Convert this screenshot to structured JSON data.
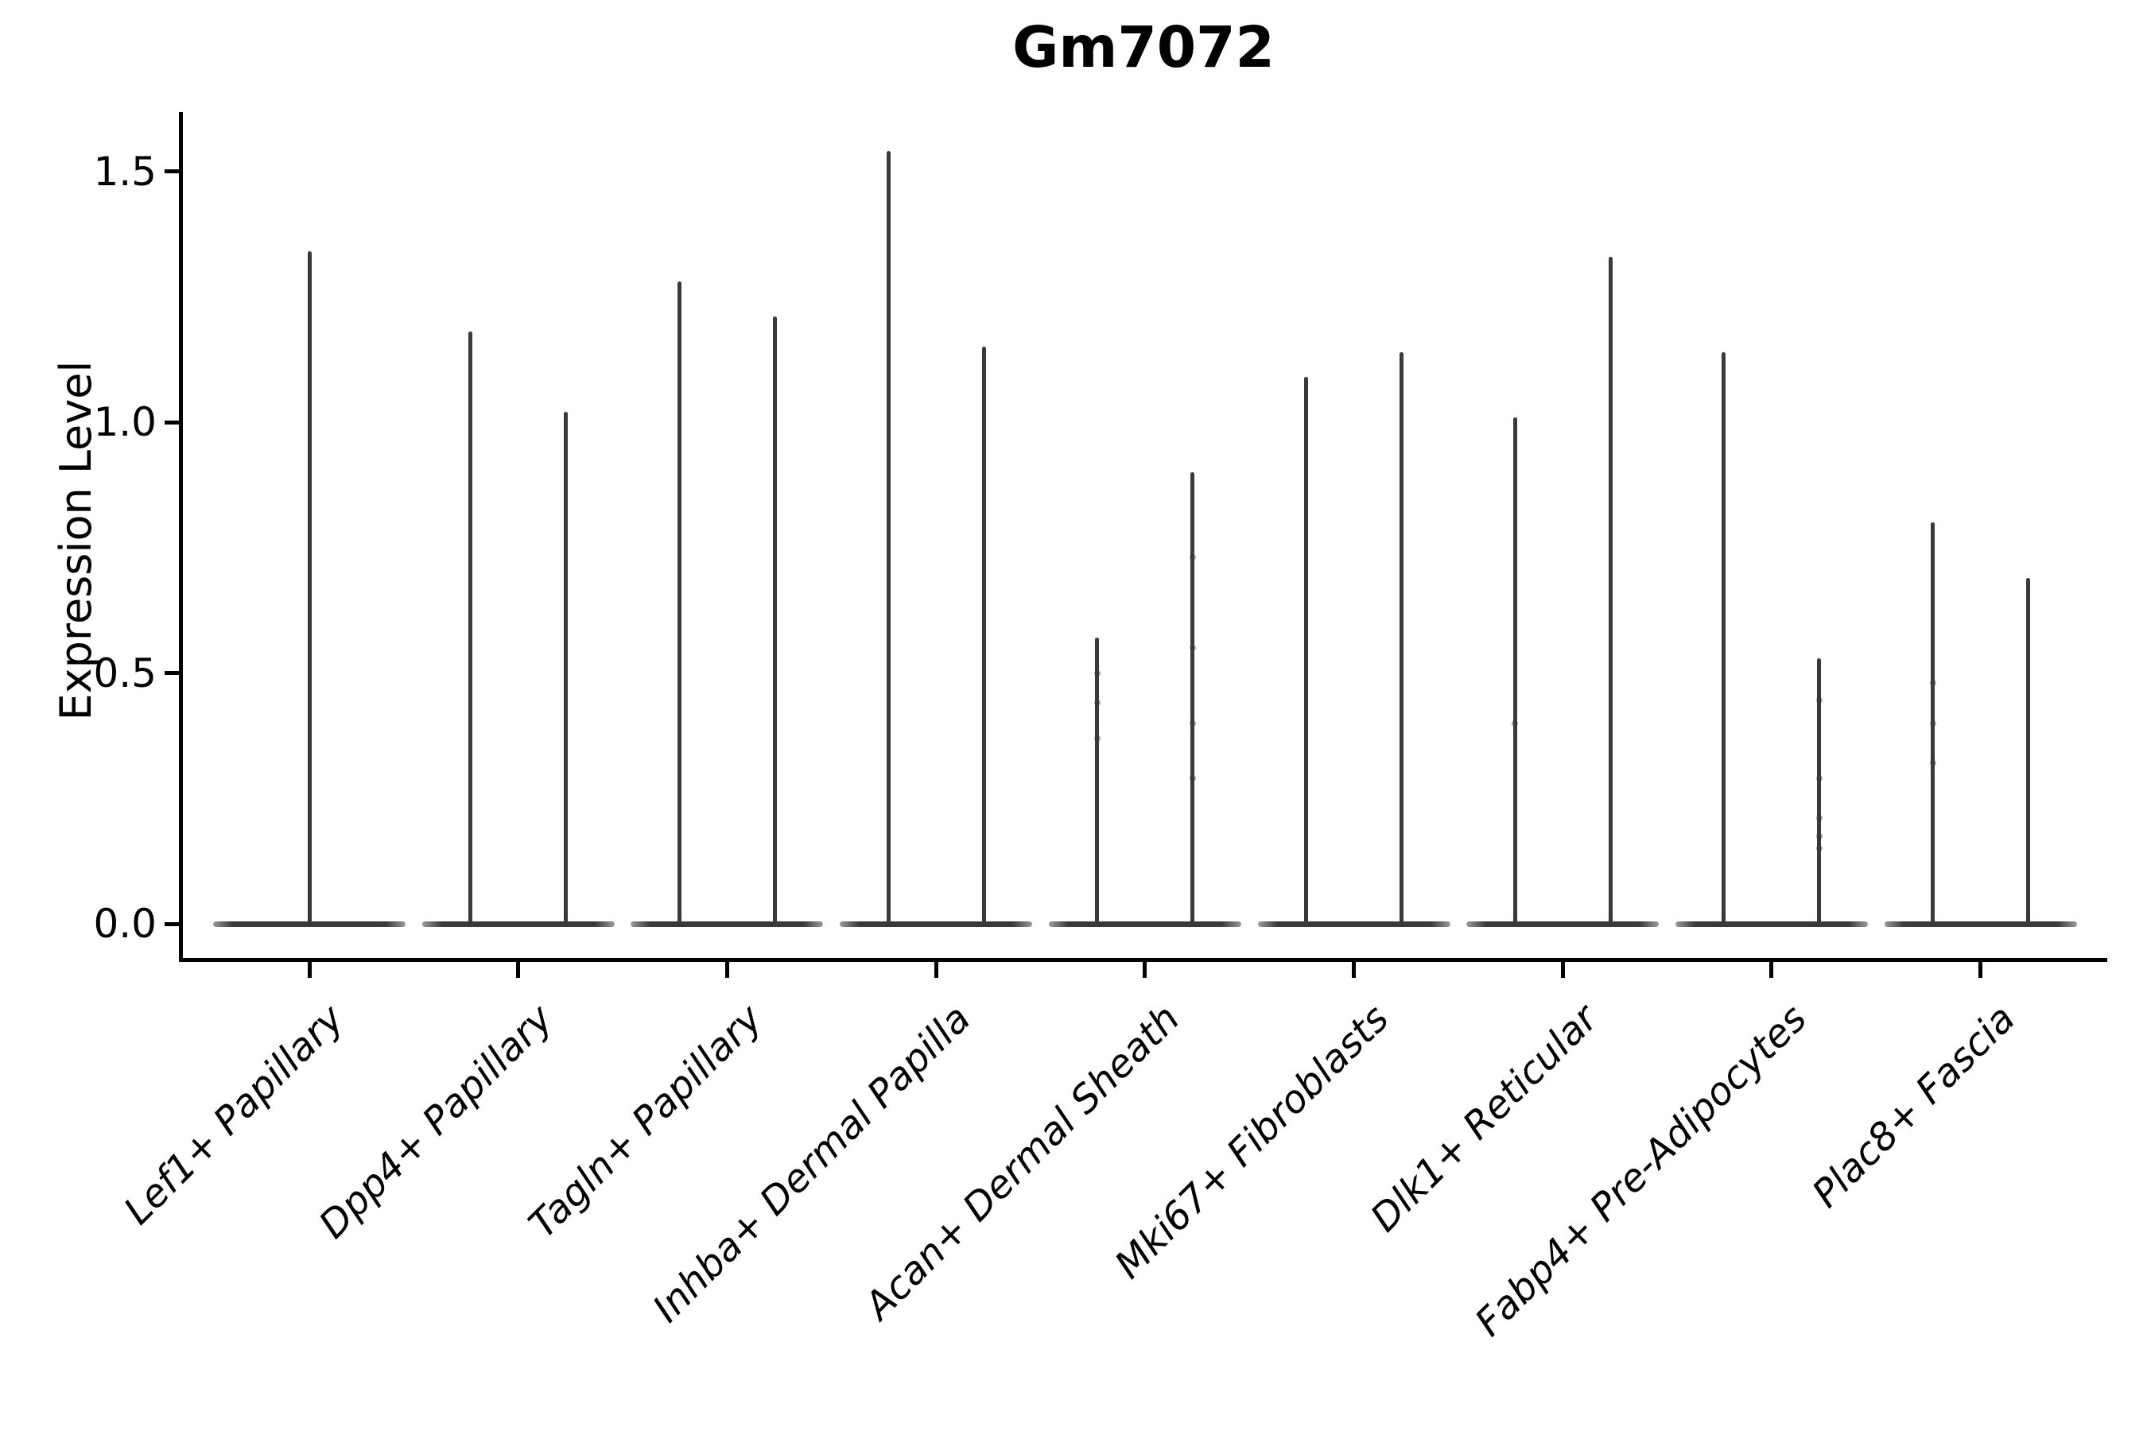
{
  "page": {
    "background": "#ffffff"
  },
  "colors": {
    "violin": "#3a3a3a",
    "axis": "#000000",
    "text": "#000000"
  },
  "chart_data": {
    "type": "violin",
    "title": "Gm7072",
    "ylabel": "Expression Level",
    "xlabel": "",
    "grid": false,
    "legend": null,
    "ylim": [
      0,
      1.62
    ],
    "yticks": [
      {
        "value": 0.0,
        "label": "0.0"
      },
      {
        "value": 0.5,
        "label": "0.5"
      },
      {
        "value": 1.0,
        "label": "1.0"
      },
      {
        "value": 1.5,
        "label": "1.5"
      }
    ],
    "categories": [
      "Lef1+ Papillary",
      "Dpp4+ Papillary",
      "Tagln+ Papillary",
      "Inhba+ Dermal Papilla",
      "Acan+ Dermal Sheath",
      "Mki67+ Fibroblasts",
      "Dlk1+ Reticular",
      "Fabp4+ Pre-Adipocytes",
      "Plac8+ Fascia"
    ],
    "series": [
      {
        "category": "Lef1+ Papillary",
        "violins": [
          {
            "max": 1.34,
            "dots": []
          }
        ]
      },
      {
        "category": "Dpp4+ Papillary",
        "violins": [
          {
            "max": 1.18,
            "dots": []
          },
          {
            "max": 1.02,
            "dots": []
          }
        ]
      },
      {
        "category": "Tagln+ Papillary",
        "violins": [
          {
            "max": 1.28,
            "dots": []
          },
          {
            "max": 1.21,
            "dots": []
          }
        ]
      },
      {
        "category": "Inhba+ Dermal Papilla",
        "violins": [
          {
            "max": 1.54,
            "dots": []
          },
          {
            "max": 1.15,
            "dots": []
          }
        ]
      },
      {
        "category": "Acan+ Dermal Sheath",
        "violins": [
          {
            "max": 0.57,
            "dots": [
              0.5,
              0.44,
              0.37
            ]
          },
          {
            "max": 0.9,
            "dots": [
              0.73,
              0.55,
              0.4,
              0.29
            ]
          }
        ]
      },
      {
        "category": "Mki67+ Fibroblasts",
        "violins": [
          {
            "max": 1.09,
            "dots": []
          },
          {
            "max": 1.14,
            "dots": []
          }
        ]
      },
      {
        "category": "Dlk1+ Reticular",
        "violins": [
          {
            "max": 1.01,
            "dots": [
              0.4
            ]
          },
          {
            "max": 1.33,
            "dots": []
          }
        ]
      },
      {
        "category": "Fabp4+ Pre-Adipocytes",
        "violins": [
          {
            "max": 1.14,
            "dots": []
          },
          {
            "max": 0.53,
            "dots": [
              0.445,
              0.29,
              0.21,
              0.175,
              0.15
            ]
          }
        ]
      },
      {
        "category": "Plac8+ Fascia",
        "violins": [
          {
            "max": 0.8,
            "dots": [
              0.48,
              0.4,
              0.32
            ]
          },
          {
            "max": 0.69,
            "dots": []
          }
        ]
      }
    ]
  }
}
